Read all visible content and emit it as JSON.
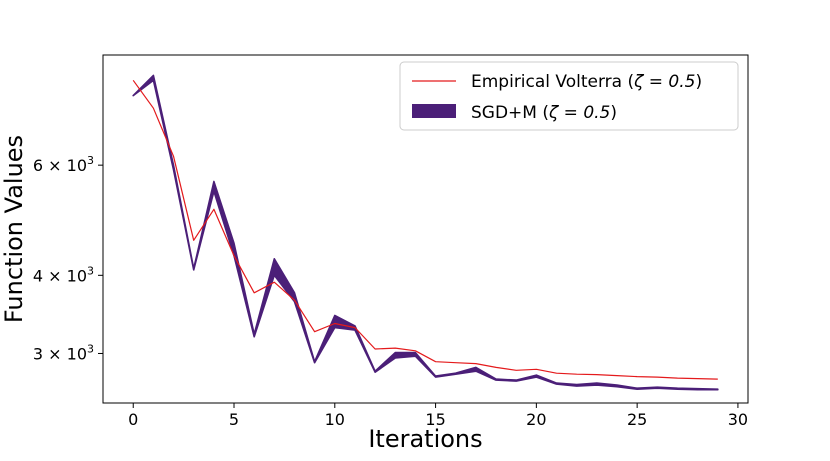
{
  "chart_data": {
    "type": "line",
    "xlabel": "Iterations",
    "ylabel": "Function Values",
    "y_scale": "log",
    "xlim": [
      -1.5,
      30.5
    ],
    "ylim": [
      2500,
      9000
    ],
    "x_ticks": [
      0,
      5,
      10,
      15,
      20,
      25,
      30
    ],
    "y_ticks": [
      {
        "value": 3000,
        "mantissa": "3",
        "base": "10",
        "exp": "3"
      },
      {
        "value": 4000,
        "mantissa": "4",
        "base": "10",
        "exp": "3"
      },
      {
        "value": 6000,
        "mantissa": "6",
        "base": "10",
        "exp": "3"
      }
    ],
    "grid": false,
    "legend_position": "top-right",
    "series": [
      {
        "name": "Empirical Volterra (ζ = 0.5)",
        "legend_main": "Empirical Volterra (",
        "legend_math": "ζ = 0.5",
        "legend_close": ")",
        "kind": "line",
        "color": "#e41a1c",
        "x": [
          0,
          1,
          2,
          3,
          4,
          5,
          6,
          7,
          8,
          9,
          10,
          11,
          12,
          13,
          14,
          15,
          16,
          17,
          18,
          19,
          20,
          21,
          22,
          23,
          24,
          25,
          26,
          27,
          28,
          29
        ],
        "values": [
          8200,
          7400,
          6200,
          4550,
          5100,
          4300,
          3750,
          3900,
          3650,
          3250,
          3350,
          3300,
          3050,
          3060,
          3030,
          2910,
          2900,
          2890,
          2850,
          2820,
          2830,
          2790,
          2780,
          2775,
          2765,
          2755,
          2750,
          2740,
          2735,
          2730
        ]
      },
      {
        "name": "SGD+M (ζ = 0.5)",
        "legend_main": "SGD+M (",
        "legend_math": "ζ = 0.5",
        "legend_close": ")",
        "kind": "band",
        "color": "#4b1f78",
        "x": [
          0,
          1,
          2,
          3,
          4,
          5,
          6,
          7,
          8,
          9,
          10,
          11,
          12,
          13,
          14,
          15,
          16,
          17,
          18,
          19,
          20,
          21,
          22,
          23,
          24,
          25,
          26,
          27,
          28,
          29
        ],
        "lower": [
          7750,
          8200,
          5900,
          4080,
          5450,
          4300,
          3190,
          4000,
          3630,
          2900,
          3300,
          3270,
          2800,
          2950,
          2970,
          2750,
          2780,
          2810,
          2720,
          2710,
          2750,
          2680,
          2660,
          2670,
          2655,
          2630,
          2640,
          2630,
          2625,
          2625
        ],
        "upper": [
          7750,
          8350,
          6000,
          4100,
          5650,
          4500,
          3220,
          4250,
          3750,
          2910,
          3450,
          3320,
          2810,
          3010,
          3010,
          2760,
          2790,
          2850,
          2730,
          2720,
          2770,
          2690,
          2675,
          2690,
          2670,
          2640,
          2650,
          2640,
          2635,
          2630
        ]
      }
    ]
  }
}
